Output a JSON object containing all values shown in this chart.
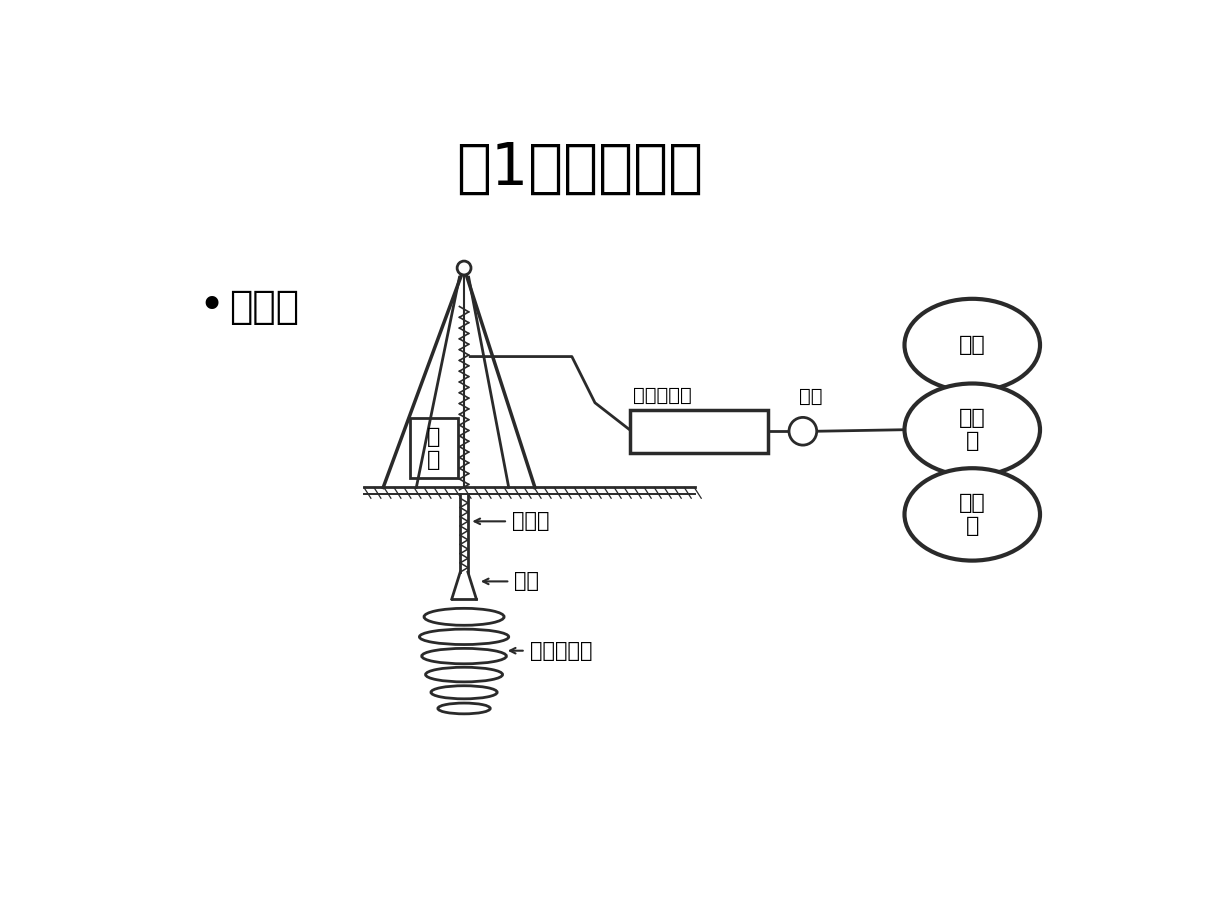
{
  "title": "（1）工艺类型",
  "title_fontsize": 42,
  "background_color": "#ffffff",
  "bullet_text": "单管法",
  "bullet_fontsize": 28,
  "labels": {
    "drill": "钻\n机",
    "pipe": "注浆管",
    "nozzle": "喷头",
    "solidify": "旋喷固结体",
    "high_pressure": "高压泥浆乘",
    "jiang_tong": "浆桶",
    "water_tank": "水箱",
    "mixer": "搅拌\n机",
    "cement": "水泥\n仓"
  },
  "line_color": "#2a2a2a",
  "line_width": 2.0,
  "font_size_labels": 15
}
